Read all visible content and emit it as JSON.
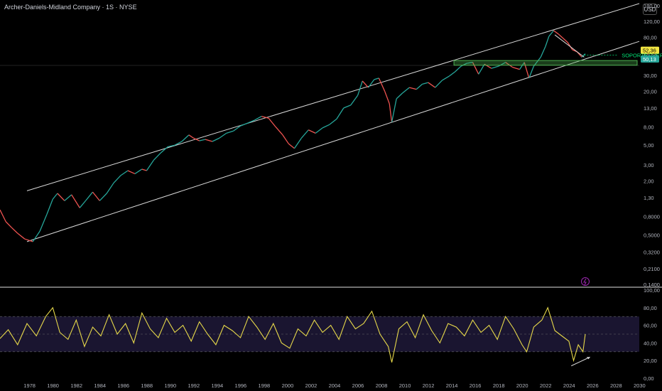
{
  "header": {
    "symbol_title": "Archer-Daniels-Midland Company · 1S · NYSE",
    "currency_button": "USD"
  },
  "colors": {
    "background": "#000000",
    "price_up": "#26a69a",
    "price_down": "#ef5350",
    "channel_line": "#d9d9d9",
    "support_zone": "#4caf50",
    "support_label": "#00e676",
    "rsi_line": "#e6d84a",
    "rsi_band": "#1a1530",
    "price_label_current": "#f0e442",
    "price_label_support": "#26a69a",
    "lightning_icon": "#9c27b0"
  },
  "chart_data": [
    {
      "type": "line",
      "scale": "log",
      "ylim": [
        0.14,
        180
      ],
      "xlim": [
        1975.5,
        2030
      ],
      "price_axis_ticks": [
        "180,00",
        "120,00",
        "80,00",
        "50,00",
        "30,00",
        "20,00",
        "13,00",
        "8,00",
        "5,00",
        "3,00",
        "2,00",
        "1,30",
        "0,8000",
        "0,5000",
        "0,3200",
        "0,2100",
        "0,1400"
      ],
      "price_axis_values": [
        180,
        120,
        80,
        50,
        30,
        20,
        13,
        8,
        5,
        3,
        2,
        1.3,
        0.8,
        0.5,
        0.32,
        0.21,
        0.14
      ],
      "series": [
        {
          "x": [
            1975.5,
            1976,
            1976.5,
            1977,
            1977.6,
            1978.3,
            1978.9,
            1979.5,
            1980,
            1980.4,
            1981,
            1981.6,
            1982.3,
            1982.8,
            1983.4,
            1984,
            1984.6,
            1985.2,
            1985.8,
            1986.4,
            1987,
            1987.6,
            1988,
            1988.6,
            1989.2,
            1989.8,
            1990.4,
            1991,
            1991.6,
            1992,
            1992.5,
            1993,
            1993.6,
            1994.2,
            1994.8,
            1995.4,
            1996,
            1996.6,
            1997.2,
            1997.8,
            1998.4,
            1999,
            1999.6,
            2000.1,
            2000.6,
            2001.2,
            2001.8,
            2002.4,
            2003,
            2003.6,
            2004.2,
            2004.8,
            2005.4,
            2006,
            2006.4,
            2006.9,
            2007.4,
            2007.8,
            2008.3,
            2008.7,
            2008.9,
            2009.3,
            2009.8,
            2010.4,
            2011,
            2011.5,
            2012,
            2012.6,
            2013.2,
            2013.8,
            2014.3,
            2014.8,
            2015.3,
            2015.8,
            2016.3,
            2016.8,
            2017.4,
            2018,
            2018.6,
            2019.2,
            2019.8,
            2020.2,
            2020.6,
            2021,
            2021.6,
            2022,
            2022.3,
            2022.7,
            2023.1,
            2023.5,
            2023.9,
            2024.3,
            2024.7,
            2025.1,
            2025.4
          ],
          "y": [
            0.95,
            0.7,
            0.6,
            0.52,
            0.45,
            0.42,
            0.55,
            0.85,
            1.25,
            1.45,
            1.2,
            1.4,
            1.0,
            1.2,
            1.5,
            1.2,
            1.45,
            1.9,
            2.3,
            2.6,
            2.4,
            2.7,
            2.6,
            3.4,
            4.1,
            4.8,
            5.0,
            5.5,
            6.5,
            6.0,
            5.6,
            5.8,
            5.5,
            6.0,
            6.8,
            7.2,
            8.2,
            8.8,
            9.5,
            10.5,
            10.0,
            8.0,
            6.5,
            5.2,
            4.6,
            6.0,
            7.4,
            6.8,
            7.8,
            8.5,
            9.8,
            13.0,
            14.0,
            18.0,
            26.0,
            22.0,
            27.0,
            28.0,
            20.0,
            14.5,
            9.0,
            16.5,
            19.0,
            22.0,
            21.0,
            24.0,
            25.0,
            22.0,
            26.5,
            29.5,
            33.0,
            38.0,
            41.0,
            42.0,
            31.0,
            40.0,
            36.0,
            38.0,
            42.0,
            37.0,
            35.0,
            42.0,
            28.0,
            38.0,
            48.0,
            63.0,
            82.0,
            95.0,
            87.0,
            78.0,
            70.0,
            58.0,
            55.0,
            48.0,
            52.36
          ]
        }
      ],
      "annotations": {
        "support_label": "SOPORTE FUERTE",
        "price_labels": [
          "52,36",
          "50,13"
        ],
        "support_zone_price_range": [
          39,
          44
        ]
      }
    },
    {
      "type": "line",
      "ylim": [
        0,
        100
      ],
      "y_axis_ticks": [
        "100,00",
        "80,00",
        "60,00",
        "40,00",
        "20,00",
        "0,00"
      ],
      "y_axis_values": [
        100,
        80,
        60,
        40,
        20,
        0
      ],
      "x_axis_ticks": [
        "1978",
        "1980",
        "1982",
        "1984",
        "1986",
        "1988",
        "1990",
        "1992",
        "1994",
        "1996",
        "1998",
        "2000",
        "2002",
        "2004",
        "2006",
        "2008",
        "2010",
        "2012",
        "2014",
        "2016",
        "2018",
        "2020",
        "2022",
        "2024",
        "2026",
        "2028",
        "2030"
      ],
      "x_axis_values": [
        1978,
        1980,
        1982,
        1984,
        1986,
        1988,
        1990,
        1992,
        1994,
        1996,
        1998,
        2000,
        2002,
        2004,
        2006,
        2008,
        2010,
        2012,
        2014,
        2016,
        2018,
        2020,
        2022,
        2024,
        2026,
        2028,
        2030
      ],
      "band": [
        30,
        70
      ],
      "midline": 50,
      "series": [
        {
          "x": [
            1975.5,
            1976.2,
            1977,
            1977.8,
            1978.6,
            1979.4,
            1980,
            1980.6,
            1981.3,
            1982,
            1982.7,
            1983.4,
            1984.1,
            1984.8,
            1985.5,
            1986.2,
            1986.9,
            1987.6,
            1988.3,
            1989,
            1989.7,
            1990.4,
            1991.1,
            1991.8,
            1992.5,
            1993.2,
            1993.9,
            1994.6,
            1995.3,
            1996,
            1996.7,
            1997.4,
            1998.1,
            1998.8,
            1999.5,
            2000.2,
            2000.9,
            2001.6,
            2002.3,
            2003,
            2003.7,
            2004.4,
            2005.1,
            2005.8,
            2006.5,
            2007.2,
            2007.9,
            2008.6,
            2008.9,
            2009.5,
            2010.2,
            2010.9,
            2011.6,
            2012.3,
            2013,
            2013.7,
            2014.4,
            2015.1,
            2015.8,
            2016.5,
            2017.2,
            2017.9,
            2018.6,
            2019.3,
            2020,
            2020.4,
            2021,
            2021.7,
            2022.2,
            2022.8,
            2023.4,
            2024,
            2024.4,
            2024.8,
            2025.2,
            2025.4
          ],
          "y": [
            45,
            55,
            38,
            62,
            48,
            70,
            80,
            52,
            44,
            66,
            36,
            58,
            48,
            72,
            50,
            62,
            40,
            74,
            56,
            46,
            68,
            52,
            60,
            42,
            64,
            50,
            38,
            60,
            54,
            46,
            70,
            58,
            44,
            62,
            40,
            34,
            56,
            48,
            66,
            52,
            60,
            44,
            70,
            56,
            62,
            76,
            50,
            36,
            18,
            56,
            64,
            46,
            72,
            54,
            40,
            62,
            58,
            48,
            66,
            52,
            60,
            44,
            70,
            56,
            38,
            30,
            58,
            66,
            80,
            54,
            48,
            42,
            20,
            38,
            30,
            50
          ]
        }
      ]
    }
  ]
}
